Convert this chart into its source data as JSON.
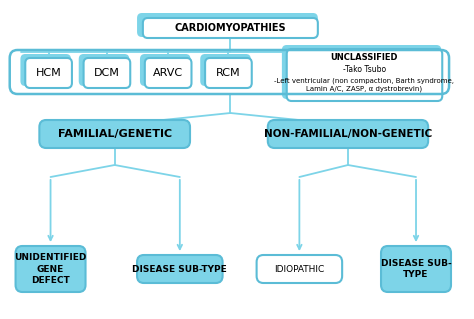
{
  "bg_color": "#ffffff",
  "box_fill_white": "#ffffff",
  "box_fill_blue": "#7dd4e8",
  "box_stroke": "#5bbcd6",
  "arrow_color": "#7dd4e8",
  "title": "CARDIOMYOPATHIES",
  "level1": [
    "HCM",
    "DCM",
    "ARVC",
    "RCM"
  ],
  "unclassified_title": "UNCLASSIFIED",
  "unclassified_line1": "-Tako Tsubo",
  "unclassified_line2": "-Left ventricular (non compaction, Barth syndrome,\nLamin A/C, ZASP, α dystrobrevin)",
  "level2_left": "FAMILIAL/GENETIC",
  "level2_right": "NON-FAMILIAL/NON-GENETIC",
  "level3_ll": "UNIDENTIFIED\nGENE\nDEFECT",
  "level3_lr": "DISEASE SUB-TYPE",
  "level3_rl": "IDIOPATHIC",
  "level3_rr": "DISEASE SUB-\nTYPE"
}
